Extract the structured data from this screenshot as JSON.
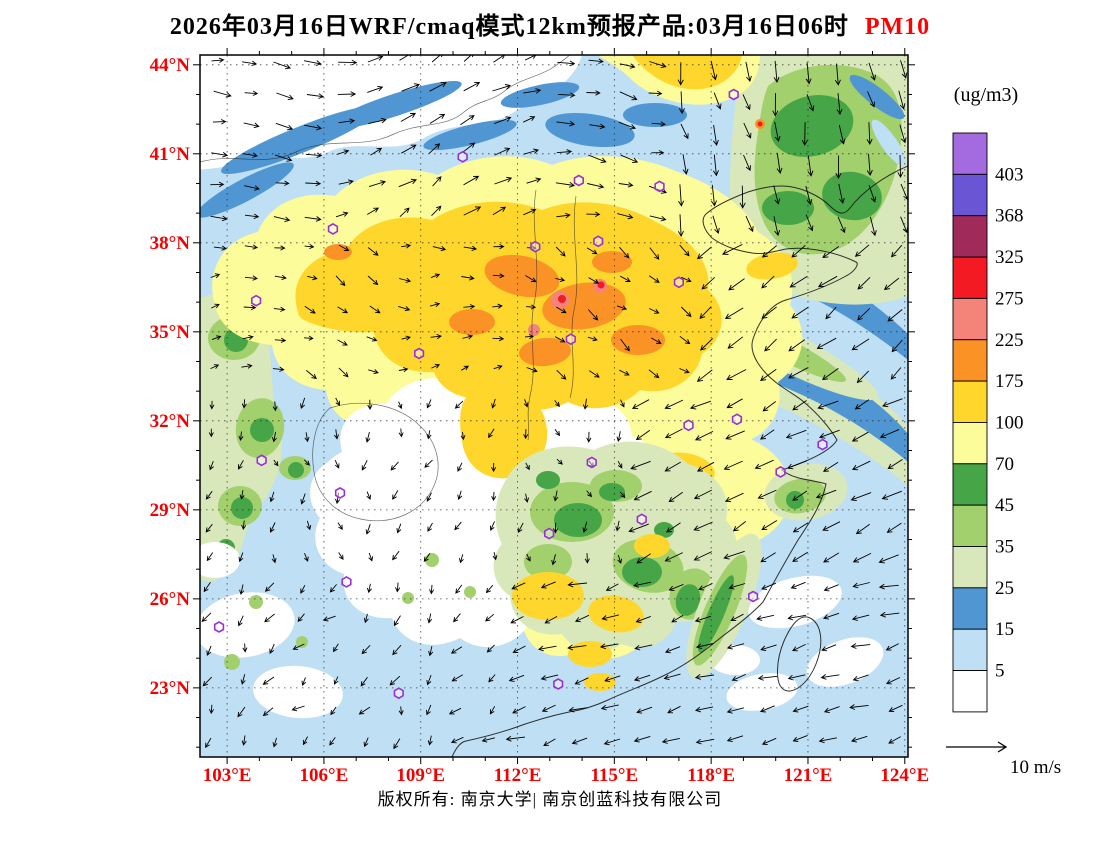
{
  "title": {
    "main": "2026年03月16日WRF/cmaq模式12km预报产品:03月16日06时",
    "pollutant": "PM10",
    "pollutant_color": "#fe0000"
  },
  "footer": {
    "text": "版权所有: 南京大学| 南京创蓝科技有限公司"
  },
  "axes": {
    "label_color": "#f40000",
    "lon_labels": [
      "103°E",
      "106°E",
      "109°E",
      "112°E",
      "115°E",
      "118°E",
      "121°E",
      "124°E"
    ],
    "lon_values": [
      103,
      106,
      109,
      112,
      115,
      118,
      121,
      124
    ],
    "lat_labels": [
      "44°N",
      "41°N",
      "38°N",
      "35°N",
      "32°N",
      "29°N",
      "26°N",
      "23°N"
    ],
    "lat_values": [
      44,
      41,
      38,
      35,
      32,
      29,
      26,
      23
    ]
  },
  "legend": {
    "unit": "(ug/m3)",
    "thresholds": [
      403,
      368,
      325,
      275,
      225,
      175,
      100,
      70,
      45,
      35,
      25,
      15,
      5
    ],
    "colors_top_to_bottom": [
      "#a46ae0",
      "#6a55d4",
      "#a02a5a",
      "#f31a24",
      "#f4837a",
      "#fb9226",
      "#ffd62b",
      "#fcfc9a",
      "#46a546",
      "#a2d06d",
      "#d8e8bb",
      "#4f96d2",
      "#bfdff4",
      "#ffffff"
    ]
  },
  "wind_scale": {
    "label": "10 m/s"
  },
  "markers": {
    "color": "#9b2fd6",
    "cities_lonlat": [
      [
        118.7,
        43.0
      ],
      [
        110.3,
        40.9
      ],
      [
        113.9,
        40.1
      ],
      [
        112.55,
        37.87
      ],
      [
        114.5,
        38.05
      ],
      [
        116.4,
        39.9
      ],
      [
        103.9,
        36.05
      ],
      [
        106.28,
        38.47
      ],
      [
        108.95,
        34.27
      ],
      [
        113.65,
        34.75
      ],
      [
        117.0,
        36.67
      ],
      [
        118.8,
        32.05
      ],
      [
        121.45,
        31.2
      ],
      [
        117.3,
        31.85
      ],
      [
        114.3,
        30.6
      ],
      [
        112.98,
        28.2
      ],
      [
        115.85,
        28.68
      ],
      [
        106.5,
        29.57
      ],
      [
        104.07,
        30.67
      ],
      [
        106.7,
        26.57
      ],
      [
        102.75,
        25.05
      ],
      [
        119.3,
        26.08
      ],
      [
        113.26,
        23.13
      ],
      [
        108.32,
        22.82
      ],
      [
        120.15,
        30.28
      ]
    ]
  },
  "chart_data": {
    "type": "filled-contour-map",
    "variable": "PM10",
    "unit": "ug/m3",
    "model": "WRF/cmaq 12km",
    "valid_time_label": "03月16日06时",
    "run_date_label": "2026年03月16日",
    "lon_range": [
      102.2,
      124.1
    ],
    "lat_range": [
      20.7,
      44.3
    ],
    "contour_levels": [
      5,
      15,
      25,
      35,
      45,
      70,
      100,
      175,
      225,
      275,
      325,
      368,
      403
    ],
    "grid_step_deg": 3,
    "legend_position": "right"
  }
}
